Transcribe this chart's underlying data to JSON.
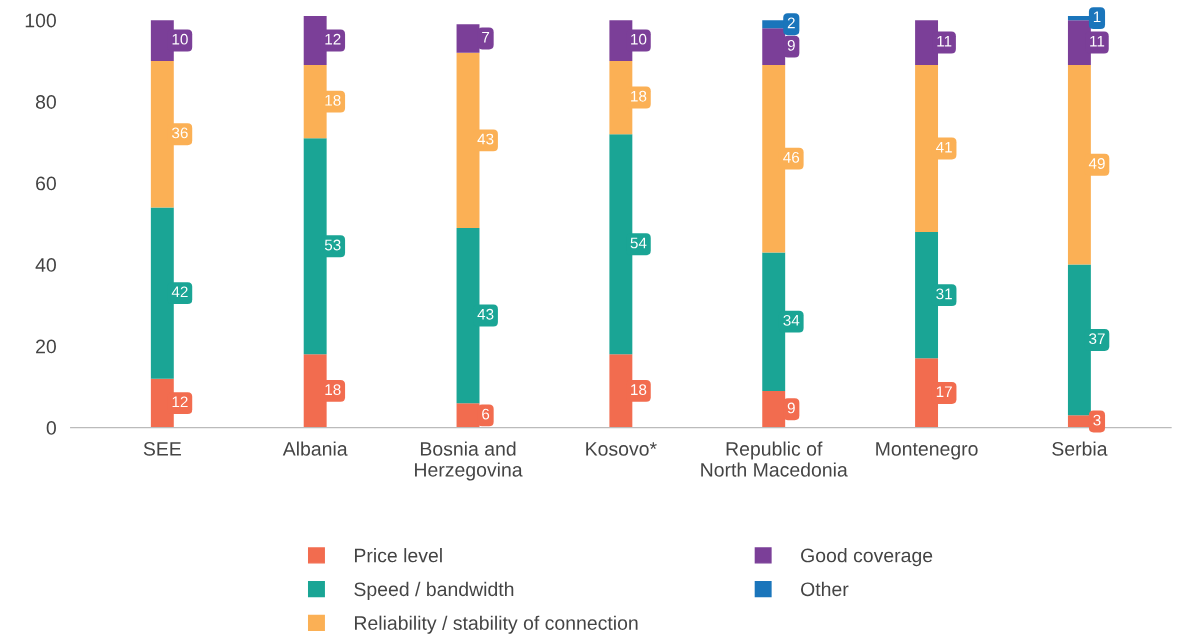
{
  "chart_data": {
    "type": "bar",
    "stacked": true,
    "categories": [
      "SEE",
      "Albania",
      "Bosnia and\nHerzegovina",
      "Kosovo*",
      "Republic of\nNorth Macedonia",
      "Montenegro",
      "Serbia"
    ],
    "series": [
      {
        "name": "Price level",
        "color": "#f26c4f",
        "values": [
          12,
          18,
          6,
          18,
          9,
          17,
          3
        ]
      },
      {
        "name": "Speed / bandwidth",
        "color": "#1aa595",
        "values": [
          42,
          53,
          43,
          54,
          34,
          31,
          37
        ]
      },
      {
        "name": "Reliability / stability of connection",
        "color": "#fbb055",
        "values": [
          36,
          18,
          43,
          18,
          46,
          41,
          49
        ]
      },
      {
        "name": "Good coverage",
        "color": "#7b3f98",
        "values": [
          10,
          12,
          7,
          10,
          9,
          11,
          11
        ]
      },
      {
        "name": "Other",
        "color": "#1a75bb",
        "values": [
          null,
          null,
          null,
          null,
          2,
          null,
          1
        ]
      }
    ],
    "ylim": [
      0,
      101
    ],
    "yticks": [
      0,
      20,
      40,
      60,
      80,
      100
    ],
    "data_labels": true,
    "grid": false,
    "legend": "bottom"
  }
}
